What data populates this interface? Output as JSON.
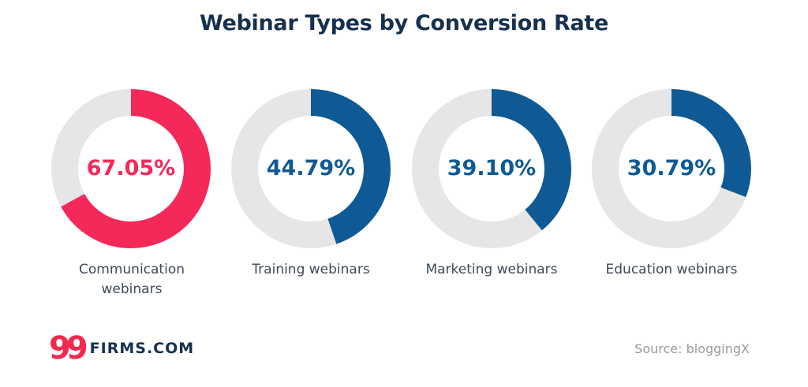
{
  "chart_data": {
    "type": "pie",
    "title": "Webinar Types by Conversion Rate",
    "unit": "%",
    "track_color": "#e6e6e6",
    "items": [
      {
        "label": "Communication webinars",
        "value": 67.05,
        "display": "67.05%",
        "color": "#f5285a"
      },
      {
        "label": "Training webinars",
        "value": 44.79,
        "display": "44.79%",
        "color": "#0f5a94"
      },
      {
        "label": "Marketing webinars",
        "value": 39.1,
        "display": "39.10%",
        "color": "#0f5a94"
      },
      {
        "label": "Education webinars",
        "value": 30.79,
        "display": "30.79%",
        "color": "#0f5a94"
      }
    ]
  },
  "branding": {
    "logo_mark": "99",
    "logo_text": "FIRMS.COM",
    "logo_mark_color": "#f2284f",
    "logo_text_color": "#16304f"
  },
  "source": "Source: bloggingX"
}
